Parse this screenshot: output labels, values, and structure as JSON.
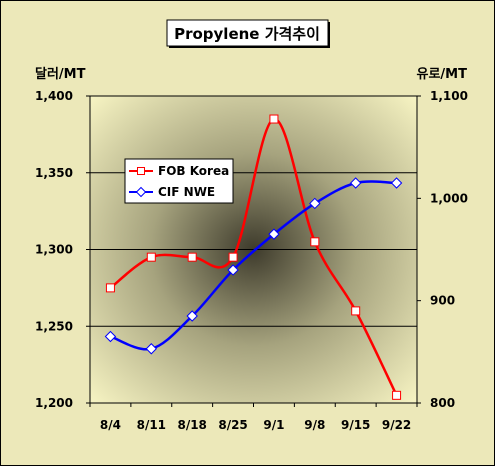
{
  "chart_data": {
    "type": "line",
    "title": "Propylene 가격추이",
    "categories": [
      "8/4",
      "8/11",
      "8/18",
      "8/25",
      "9/1",
      "9/8",
      "9/15",
      "9/22"
    ],
    "left_axis": {
      "unit_label": "달러/MT",
      "ylim": [
        1200,
        1400
      ],
      "ticks": [
        "1,200",
        "1,250",
        "1,300",
        "1,350",
        "1,400"
      ]
    },
    "right_axis": {
      "unit_label": "유로/MT",
      "ylim": [
        800,
        1100
      ],
      "ticks": [
        "800",
        "900",
        "1,000",
        "1,100"
      ]
    },
    "series": [
      {
        "name": "FOB Korea",
        "axis": "left",
        "color": "#ff0000",
        "marker": "square",
        "values": [
          1275,
          1295,
          1295,
          1295,
          1385,
          1305,
          1260,
          1205
        ]
      },
      {
        "name": "CIF NWE",
        "axis": "right",
        "color": "#0000ff",
        "marker": "diamond",
        "values": [
          865,
          853,
          885,
          930,
          965,
          995,
          1015,
          1015
        ]
      }
    ],
    "grid": true,
    "legend_position": "upper-left inside plot"
  }
}
